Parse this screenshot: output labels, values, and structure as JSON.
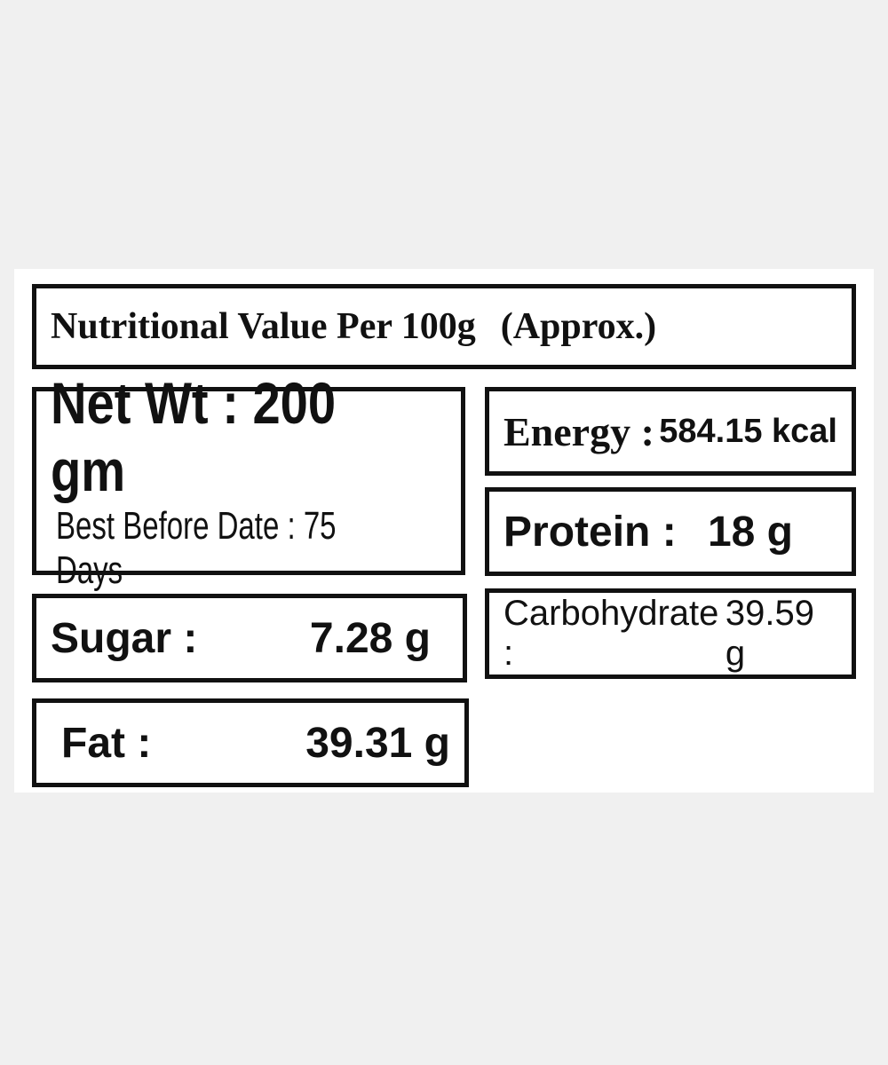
{
  "header": {
    "title": "Nutritional Value Per 100g",
    "note": "(Approx.)"
  },
  "net_weight": {
    "label": "Net Wt :",
    "value": "200 gm"
  },
  "best_before": {
    "label": "Best Before Date :",
    "value": "75 Days"
  },
  "items": [
    {
      "label": "Energy :",
      "value": "584.15 kcal"
    },
    {
      "label": "Protein :",
      "value": "18 g"
    },
    {
      "label": "Sugar :",
      "value": "7.28 g"
    },
    {
      "label": "Carbohydrate :",
      "value": "39.59 g"
    },
    {
      "label": "Fat :",
      "value": "39.31 g"
    }
  ]
}
